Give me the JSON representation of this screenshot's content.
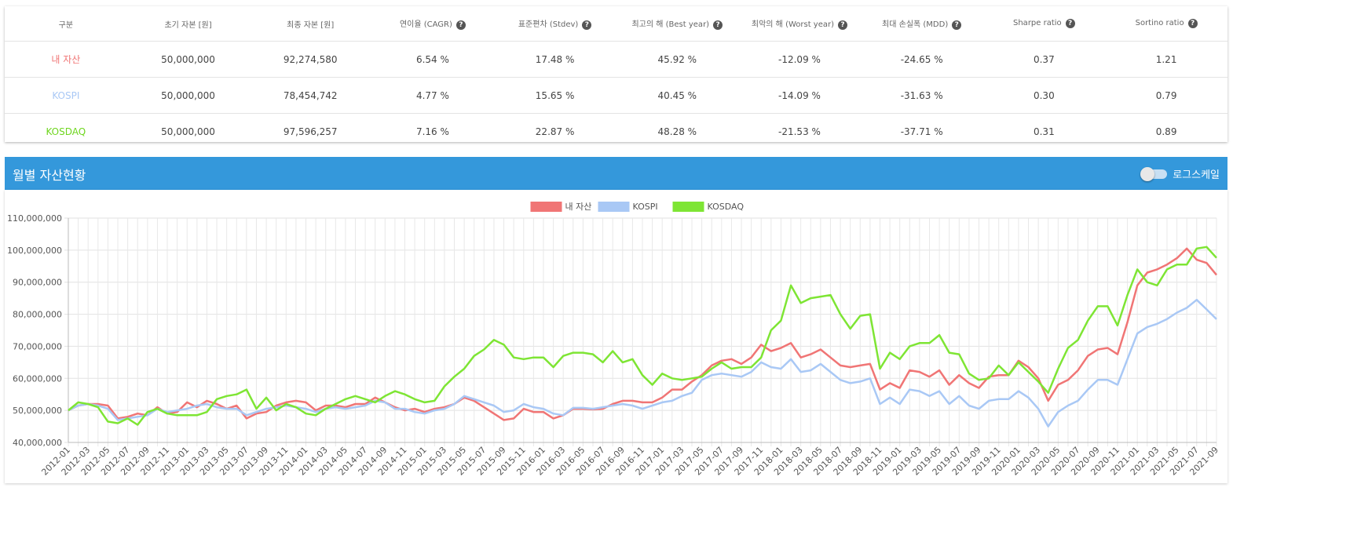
{
  "table": {
    "headers": [
      "구분",
      "초기 자본 [원]",
      "최종 자본 [원]",
      "연이율 (CAGR)",
      "표준편차 (Stdev)",
      "최고의 해 (Best year)",
      "최악의 해 (Worst year)",
      "최대 손실폭 (MDD)",
      "Sharpe ratio",
      "Sortino ratio"
    ],
    "rows": [
      [
        "내 자산",
        "50,000,000",
        "92,274,580",
        "6.54 %",
        "17.48 %",
        "45.92 %",
        "-12.09 %",
        "-24.65 %",
        "0.37",
        "1.21"
      ],
      [
        "KOSPI",
        "50,000,000",
        "78,454,742",
        "4.77 %",
        "15.65 %",
        "40.45 %",
        "-14.09 %",
        "-31.63 %",
        "0.30",
        "0.79"
      ],
      [
        "KOSDAQ",
        "50,000,000",
        "97,596,257",
        "7.16 %",
        "22.87 %",
        "48.28 %",
        "-21.53 %",
        "-37.71 %",
        "0.31",
        "0.89"
      ]
    ]
  },
  "section_title": "월별 자산현황",
  "toggle_label": "로그스케일",
  "chart_data": {
    "type": "line",
    "log_scale": false,
    "grid": true,
    "legend": "top",
    "categories": [
      "2012-01",
      null,
      "2012-03",
      null,
      "2012-05",
      null,
      "2012-07",
      null,
      "2012-09",
      null,
      "2012-11",
      null,
      "2013-01",
      null,
      "2013-03",
      null,
      "2013-05",
      null,
      "2013-07",
      null,
      "2013-09",
      null,
      "2013-11",
      null,
      "2014-01",
      null,
      "2014-03",
      null,
      "2014-05",
      null,
      "2014-07",
      null,
      "2014-09",
      null,
      "2014-11",
      null,
      "2015-01",
      null,
      "2015-03",
      null,
      "2015-05",
      null,
      "2015-07",
      null,
      "2015-09",
      null,
      "2015-11",
      null,
      "2016-01",
      null,
      "2016-03",
      null,
      "2016-05",
      null,
      "2016-07",
      null,
      "2016-09",
      null,
      "2016-11",
      null,
      "2017-01",
      null,
      "2017-03",
      null,
      "2017-05",
      null,
      "2017-07",
      null,
      "2017-09",
      null,
      "2017-11",
      null,
      "2018-01",
      null,
      "2018-03",
      null,
      "2018-05",
      null,
      "2018-07",
      null,
      "2018-09",
      null,
      "2018-11",
      null,
      "2019-01",
      null,
      "2019-03",
      null,
      "2019-05",
      null,
      "2019-07",
      null,
      "2019-09",
      null,
      "2019-11",
      null,
      "2020-01",
      null,
      "2020-03",
      null,
      "2020-05",
      null,
      "2020-07",
      null,
      "2020-09",
      null,
      "2020-11",
      null,
      "2021-01",
      null,
      "2021-03",
      null,
      "2021-05",
      null,
      "2021-07",
      null,
      "2021-09"
    ],
    "ylim": [
      40000000.0,
      110000000.0
    ],
    "yticks": [
      {
        "value": 40000000.0,
        "label": "40,000,000"
      },
      {
        "value": 50000000.0,
        "label": "50,000,000"
      },
      {
        "value": 60000000.0,
        "label": "60,000,000"
      },
      {
        "value": 70000000.0,
        "label": "70,000,000"
      },
      {
        "value": 80000000.0,
        "label": "80,000,000"
      },
      {
        "value": 90000000.0,
        "label": "90,000,000"
      },
      {
        "value": 100000000.0,
        "label": "100,000,000"
      },
      {
        "value": 110000000.0,
        "label": "110,000,000"
      }
    ],
    "series": [
      {
        "name": "내 자산",
        "color": "#f07575",
        "values": [
          50000000,
          51500000.0,
          52000000.0,
          52000000.0,
          51500000.0,
          47500000.0,
          48000000.0,
          49000000.0,
          48500000.0,
          51000000.0,
          49000000.0,
          49500000.0,
          52500000.0,
          51000000.0,
          53000000.0,
          52000000.0,
          50500000.0,
          51500000.0,
          47500000.0,
          49000000.0,
          49500000.0,
          51500000.0,
          52500000.0,
          53000000.0,
          52500000.0,
          50000000.0,
          51500000.0,
          51500000.0,
          51000000.0,
          52000000.0,
          52000000.0,
          54000000.0,
          52500000.0,
          51000000.0,
          50000000.0,
          50500000.0,
          49500000.0,
          50500000.0,
          51000000.0,
          52000000.0,
          54000000.0,
          53000000.0,
          51000000.0,
          49000000.0,
          47000000.0,
          47500000.0,
          50500000.0,
          49500000.0,
          49500000.0,
          47500000.0,
          48500000.0,
          50500000.0,
          50500000.0,
          50300000.0,
          50500000.0,
          52000000.0,
          53000000.0,
          53000000.0,
          52500000.0,
          52500000.0,
          54000000.0,
          56500000.0,
          56500000.0,
          59000000.0,
          61000000.0,
          64000000.0,
          65500000.0,
          66000000.0,
          64500000.0,
          66500000.0,
          70500000.0,
          68500000.0,
          69500000.0,
          71000000.0,
          66500000.0,
          67500000.0,
          69000000.0,
          66500000.0,
          64000000.0,
          63500000.0,
          64000000.0,
          64500000.0,
          56500000.0,
          58500000.0,
          57000000.0,
          62500000.0,
          62000000.0,
          60500000.0,
          62500000.0,
          58000000.0,
          61000000.0,
          58500000.0,
          57000000.0,
          60500000.0,
          61000000.0,
          61000000.0,
          65500000.0,
          63500000.0,
          60000000.0,
          53000000.0,
          58000000.0,
          59500000.0,
          62500000.0,
          67000000.0,
          69000000.0,
          69500000.0,
          67500000.0,
          77500000.0,
          89000000.0,
          93000000.0,
          94000000.0,
          95500000.0,
          97500000.0,
          100500000.0,
          97000000.0,
          96000000.0,
          92274580
        ]
      },
      {
        "name": "KOSPI",
        "color": "#a9c8f5",
        "values": [
          50000000,
          51500000.0,
          52000000.0,
          51500000.0,
          50500000.0,
          47000000.0,
          47500000.0,
          48000000.0,
          48500000.0,
          50500000.0,
          49500000.0,
          50000000.0,
          50500000.0,
          51500000.0,
          52000000.0,
          51000000.0,
          50500000.0,
          50500000.0,
          48500000.0,
          49500000.0,
          50500000.0,
          51000000.0,
          51500000.0,
          51000000.0,
          50500000.0,
          49500000.0,
          50500000.0,
          51000000.0,
          50500000.0,
          51000000.0,
          51500000.0,
          53000000.0,
          52500000.0,
          50500000.0,
          50500000.0,
          49500000.0,
          49000000.0,
          50000000.0,
          50500000.0,
          52000000.0,
          54500000.0,
          53500000.0,
          52500000.0,
          51500000.0,
          49500000.0,
          50000000.0,
          52000000.0,
          51000000.0,
          50500000.0,
          49000000.0,
          48500000.0,
          50800000.0,
          50800000.0,
          50500000.0,
          51000000.0,
          51500000.0,
          52000000.0,
          51500000.0,
          50500000.0,
          51500000.0,
          52500000.0,
          53000000.0,
          54500000.0,
          55500000.0,
          59500000.0,
          61000000.0,
          61500000.0,
          61000000.0,
          60500000.0,
          62000000.0,
          65000000.0,
          63500000.0,
          63000000.0,
          66000000.0,
          62000000.0,
          62500000.0,
          64500000.0,
          62000000.0,
          59500000.0,
          58500000.0,
          59000000.0,
          60000000.0,
          52000000.0,
          54000000.0,
          52000000.0,
          56500000.0,
          56000000.0,
          54500000.0,
          56000000.0,
          52000000.0,
          54500000.0,
          51500000.0,
          50500000.0,
          53000000.0,
          53500000.0,
          53500000.0,
          56000000.0,
          54000000.0,
          50500000.0,
          45000000.0,
          49500000.0,
          51500000.0,
          53000000.0,
          56500000.0,
          59500000.0,
          59500000.0,
          58000000.0,
          66000000.0,
          74000000.0,
          76000000.0,
          77000000.0,
          78500000.0,
          80500000.0,
          82000000.0,
          84500000.0,
          81500000.0,
          78454742
        ]
      },
      {
        "name": "KOSDAQ",
        "color": "#7ee534",
        "values": [
          50000000,
          52500000.0,
          52000000.0,
          51000000.0,
          46500000.0,
          46000000.0,
          47500000.0,
          45500000.0,
          49500000.0,
          50500000.0,
          49000000.0,
          48500000.0,
          48500000.0,
          48500000.0,
          49500000.0,
          53500000.0,
          54500000.0,
          55000000.0,
          56500000.0,
          50500000.0,
          54000000.0,
          50000000.0,
          52000000.0,
          51000000.0,
          49000000.0,
          48500000.0,
          50500000.0,
          52000000.0,
          53500000.0,
          54500000.0,
          53500000.0,
          52500000.0,
          54500000.0,
          56000000.0,
          55000000.0,
          53500000.0,
          52500000.0,
          53000000.0,
          57500000.0,
          60500000.0,
          63000000.0,
          67000000.0,
          69000000.0,
          72000000.0,
          70500000.0,
          66500000.0,
          66000000.0,
          66500000.0,
          66500000.0,
          63500000.0,
          67000000.0,
          68000000.0,
          68000000.0,
          67500000.0,
          65000000.0,
          68500000.0,
          65000000.0,
          66000000.0,
          61000000.0,
          58000000.0,
          61500000.0,
          60000000.0,
          59500000.0,
          60000000.0,
          60500000.0,
          63000000.0,
          65000000.0,
          63000000.0,
          63500000.0,
          63500000.0,
          66500000.0,
          75000000.0,
          78000000.0,
          89000000.0,
          83500000.0,
          85000000.0,
          85500000.0,
          86000000.0,
          80000000.0,
          75500000.0,
          79500000.0,
          80000000.0,
          63000000.0,
          68000000.0,
          66000000.0,
          70000000.0,
          71000000.0,
          71000000.0,
          73500000.0,
          68000000.0,
          67500000.0,
          61500000.0,
          59500000.0,
          60000000.0,
          64000000.0,
          61000000.0,
          65000000.0,
          62000000.0,
          59000000.0,
          55500000.0,
          63000000.0,
          69500000.0,
          72000000.0,
          78000000.0,
          82500000.0,
          82500000.0,
          76500000.0,
          86000000.0,
          94000000.0,
          90000000.0,
          89000000.0,
          94000000.0,
          95500000.0,
          95500000.0,
          100500000.0,
          101000000.0,
          97596257
        ]
      }
    ]
  }
}
